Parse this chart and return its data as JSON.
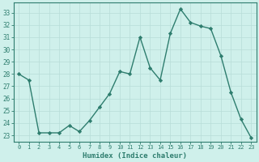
{
  "x": [
    0,
    1,
    2,
    3,
    4,
    5,
    6,
    7,
    8,
    9,
    10,
    11,
    12,
    13,
    14,
    15,
    16,
    17,
    18,
    19,
    20,
    21,
    22,
    23
  ],
  "y": [
    28,
    27.5,
    23.2,
    23.2,
    23.2,
    23.8,
    23.3,
    24.2,
    25.3,
    26.4,
    28.2,
    28.0,
    31.0,
    28.5,
    27.5,
    31.3,
    33.3,
    32.2,
    31.9,
    31.7,
    29.5,
    26.5,
    24.3,
    22.8
  ],
  "line_color": "#2e7d6e",
  "marker": "D",
  "marker_size": 2.2,
  "bg_color": "#cff0eb",
  "grid_color": "#b8ddd8",
  "xlabel": "Humidex (Indice chaleur)",
  "ylabel_ticks": [
    23,
    24,
    25,
    26,
    27,
    28,
    29,
    30,
    31,
    32,
    33
  ],
  "xlim": [
    -0.5,
    23.5
  ],
  "ylim": [
    22.5,
    33.8
  ]
}
